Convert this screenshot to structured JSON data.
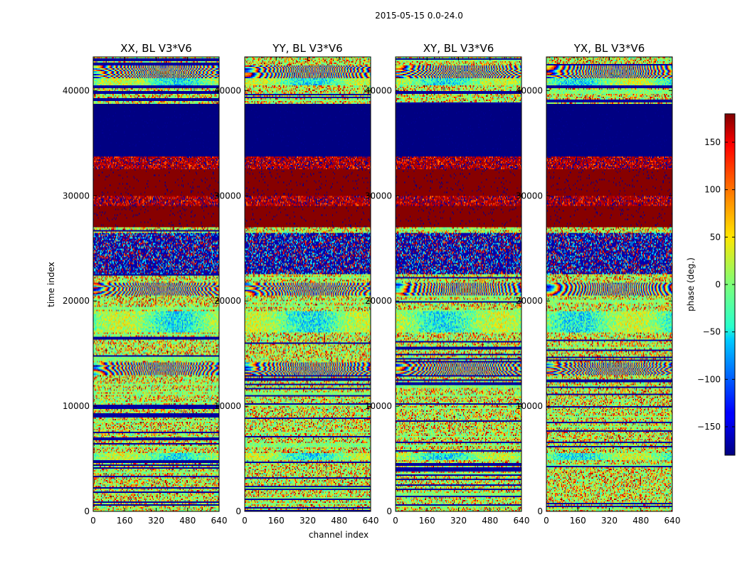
{
  "chart_data": {
    "type": "heatmap",
    "title": "2015-05-15 0.0-24.0",
    "xlabel": "channel index",
    "ylabel": "time index",
    "xlim": [
      0,
      640
    ],
    "ylim": [
      0,
      43200
    ],
    "x_ticks": [
      0,
      160,
      320,
      480,
      640
    ],
    "y_ticks": [
      0,
      10000,
      20000,
      30000,
      40000
    ],
    "panels": [
      {
        "title": "XX, BL V3*V6"
      },
      {
        "title": "YY, BL V3*V6"
      },
      {
        "title": "XY, BL V3*V6"
      },
      {
        "title": "YX, BL V3*V6"
      }
    ],
    "colorbar": {
      "label": "phase (deg.)",
      "colormap": "jet",
      "range": [
        -180,
        180
      ],
      "ticks": [
        -150,
        -100,
        -50,
        0,
        50,
        100,
        150
      ],
      "tick_labels": [
        "−150",
        "−100",
        "−50",
        "0",
        "50",
        "100",
        "150"
      ]
    },
    "time_bands": [
      {
        "from": 0,
        "to": 4800,
        "pattern": "noise"
      },
      {
        "from": 4800,
        "to": 5600,
        "pattern": "smooth"
      },
      {
        "from": 5600,
        "to": 10500,
        "pattern": "noise"
      },
      {
        "from": 10500,
        "to": 13000,
        "pattern": "noise"
      },
      {
        "from": 13000,
        "to": 14200,
        "pattern": "fringe"
      },
      {
        "from": 14200,
        "to": 17000,
        "pattern": "noise"
      },
      {
        "from": 17000,
        "to": 19000,
        "pattern": "smooth"
      },
      {
        "from": 19000,
        "to": 20500,
        "pattern": "noise"
      },
      {
        "from": 20500,
        "to": 21800,
        "pattern": "fringe"
      },
      {
        "from": 21800,
        "to": 22600,
        "pattern": "noise"
      },
      {
        "from": 22600,
        "to": 26500,
        "pattern": "low_mixed",
        "value": -165
      },
      {
        "from": 26500,
        "to": 27000,
        "pattern": "noise"
      },
      {
        "from": 27000,
        "to": 29000,
        "pattern": "solid",
        "value": 178
      },
      {
        "from": 29000,
        "to": 30000,
        "pattern": "high_mixed",
        "value": 160
      },
      {
        "from": 30000,
        "to": 32500,
        "pattern": "solid",
        "value": 178
      },
      {
        "from": 32500,
        "to": 33800,
        "pattern": "high_mixed",
        "value": 160
      },
      {
        "from": 33800,
        "to": 38800,
        "pattern": "solid",
        "value": -179
      },
      {
        "from": 38800,
        "to": 40500,
        "pattern": "noise"
      },
      {
        "from": 40500,
        "to": 41200,
        "pattern": "smooth"
      },
      {
        "from": 41200,
        "to": 42400,
        "pattern": "fringe"
      },
      {
        "from": 42400,
        "to": 43200,
        "pattern": "noise"
      }
    ]
  }
}
